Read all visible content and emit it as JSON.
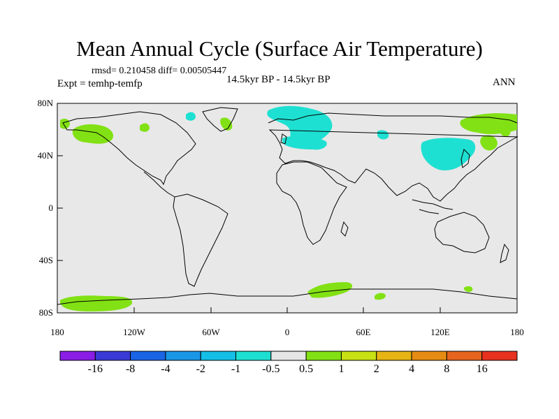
{
  "title": "Mean Annual Cycle (Surface Air Temperature)",
  "stats": "rmsd= 0.210458 diff= 0.00505447",
  "experiment": "Expt = temhp-temfp",
  "period": "14.5kyr BP - 14.5kyr BP",
  "season": "ANN",
  "y_ticks": [
    "80N",
    "40N",
    "0",
    "40S",
    "80S"
  ],
  "x_ticks": [
    "180",
    "120W",
    "60W",
    "0",
    "60E",
    "120E",
    "180"
  ],
  "colorbar": {
    "labels": [
      "-16",
      "-8",
      "-4",
      "-2",
      "-1",
      "-0.5",
      "0.5",
      "1",
      "2",
      "4",
      "8",
      "16"
    ],
    "colors": [
      "#8a1ee6",
      "#3a3ad6",
      "#1a64e6",
      "#1a96e6",
      "#14bee6",
      "#1ee0d2",
      "#e6e6e6",
      "#82e114",
      "#c8e114",
      "#e6b414",
      "#e68c14",
      "#e6641e",
      "#e6321e"
    ]
  },
  "map": {
    "background": "#e8e8e8",
    "coast": "#000000"
  }
}
